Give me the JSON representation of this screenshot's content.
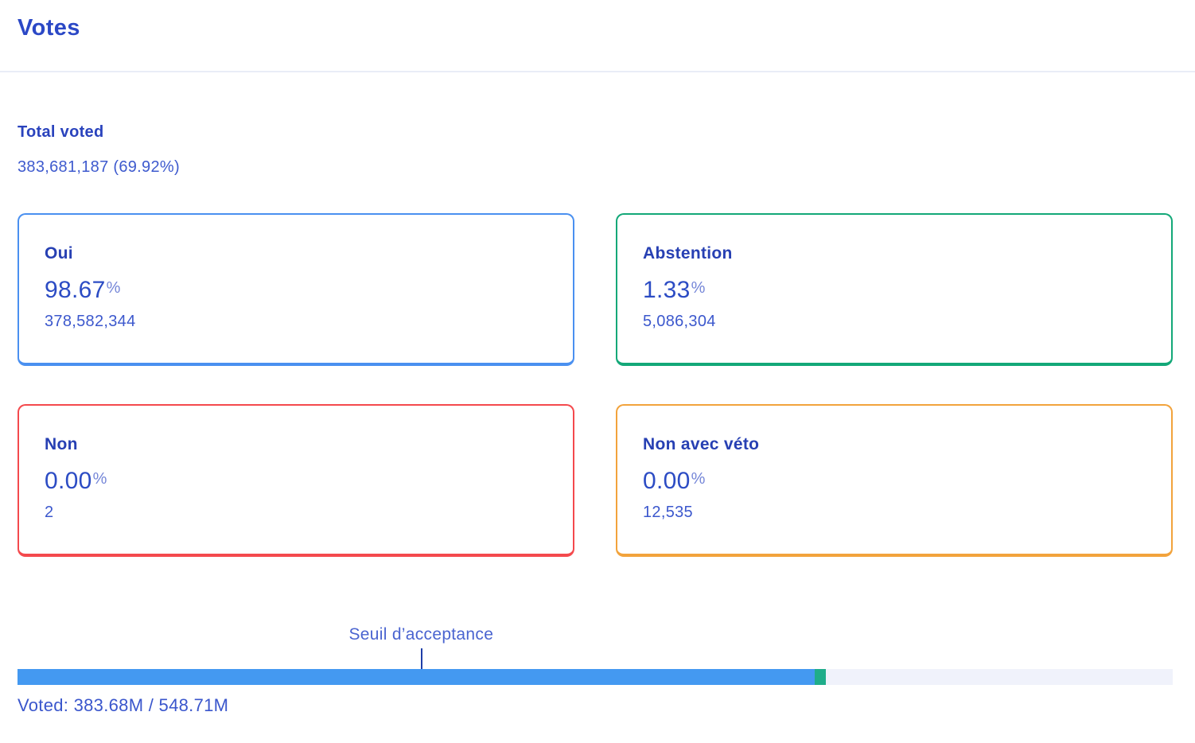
{
  "header": {
    "title": "Votes"
  },
  "total_voted": {
    "label": "Total voted",
    "value": "383,681,187 (69.92%)"
  },
  "labels": {
    "percent_sign": "%"
  },
  "vote_cards": [
    {
      "option": "Oui",
      "percent": "98.67",
      "count": "378,582,344",
      "border_color": "#4a90f0"
    },
    {
      "option": "Abstention",
      "percent": "1.33",
      "count": "5,086,304",
      "border_color": "#13a878"
    },
    {
      "option": "Non",
      "percent": "0.00",
      "count": "2",
      "border_color": "#f4494d"
    },
    {
      "option": "Non avec véto",
      "percent": "0.00",
      "count": "12,535",
      "border_color": "#f2a33c"
    }
  ],
  "threshold": {
    "label": "Seuil d’acceptance",
    "position_pct": 34.94
  },
  "progress_bar": {
    "track_color": "#f0f2fb",
    "segments": [
      {
        "name": "oui",
        "color": "#4499f1",
        "width_pct": 69.0
      },
      {
        "name": "abstention",
        "color": "#1fad8a",
        "width_pct": 0.96
      }
    ]
  },
  "voted_summary": {
    "text": "Voted: 383.68M / 548.71M"
  },
  "chart_data": {
    "type": "bar",
    "title": "Votes",
    "categories": [
      "Oui",
      "Abstention",
      "Non",
      "Non avec véto"
    ],
    "series": [
      {
        "name": "percent",
        "values": [
          98.67,
          1.33,
          0.0,
          0.0
        ]
      },
      {
        "name": "count",
        "values": [
          378582344,
          5086304,
          2,
          12535
        ]
      }
    ],
    "total_voted": 383681187,
    "turnout_percent": 69.92,
    "voted_tokens_display": "383.68M",
    "total_tokens_display": "548.71M",
    "acceptance_threshold_pct_of_bar": 34.94,
    "progress_segments_pct_of_bar": {
      "oui": 69.0,
      "abstention": 0.96
    }
  }
}
